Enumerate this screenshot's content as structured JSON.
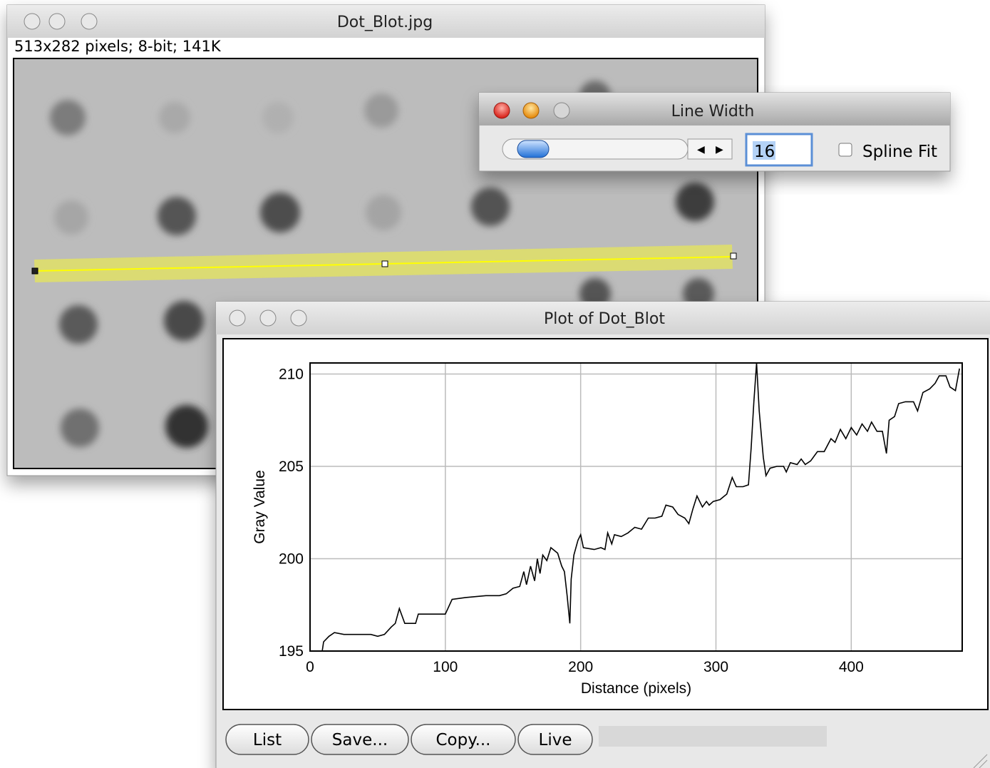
{
  "windows": {
    "image": {
      "title": "Dot_Blot.jpg",
      "info": "513x282 pixels; 8-bit; 141K"
    },
    "line_width": {
      "title": "Line Width",
      "value": 16,
      "checkbox": "Spline Fit"
    },
    "plot": {
      "title": "Plot of Dot_Blot",
      "buttons": [
        "List",
        "Save...",
        "Copy...",
        "Live"
      ]
    }
  },
  "chart_data": {
    "type": "line",
    "x_label": "Distance (pixels)",
    "y_label": "Gray Value",
    "color": "#000000",
    "grid": true,
    "xlim": [
      0,
      482
    ],
    "ylim": [
      195,
      210.6
    ],
    "xticks": [
      0,
      100,
      200,
      300,
      400
    ],
    "yticks": [
      195,
      200,
      205,
      210
    ],
    "x": [
      9,
      10,
      14,
      18,
      25,
      35,
      45,
      50,
      55,
      60,
      63,
      66,
      70,
      78,
      80,
      90,
      100,
      105,
      115,
      130,
      140,
      145,
      150,
      155,
      158,
      160,
      163,
      166,
      168,
      170,
      172,
      175,
      178,
      183,
      186,
      188,
      190,
      192,
      193,
      195,
      198,
      200,
      202,
      210,
      215,
      218,
      220,
      223,
      225,
      230,
      235,
      240,
      245,
      250,
      255,
      260,
      263,
      268,
      272,
      277,
      280,
      283,
      286,
      290,
      293,
      295,
      298,
      303,
      308,
      312,
      315,
      320,
      324,
      326,
      328,
      330,
      332,
      335,
      337,
      340,
      345,
      350,
      352,
      355,
      360,
      363,
      366,
      370,
      375,
      380,
      385,
      388,
      392,
      396,
      400,
      404,
      408,
      412,
      415,
      419,
      423,
      426,
      428,
      432,
      435,
      440,
      446,
      449,
      453,
      458,
      462,
      465,
      470,
      473,
      477,
      480
    ],
    "values": [
      195,
      195.5,
      195.8,
      196,
      195.9,
      195.9,
      195.9,
      195.8,
      195.9,
      196.3,
      196.5,
      197.3,
      196.5,
      196.5,
      197,
      197,
      197,
      197.8,
      197.9,
      198,
      198,
      198.1,
      198.4,
      198.5,
      199.3,
      198.6,
      199.6,
      198.8,
      200,
      199.2,
      200.2,
      199.9,
      200.6,
      200.3,
      199.6,
      199.3,
      198,
      196.5,
      198.9,
      200.2,
      201,
      201.3,
      200.6,
      200.5,
      200.6,
      200.5,
      201.4,
      200.8,
      201.3,
      201.2,
      201.4,
      201.7,
      201.6,
      202.2,
      202.2,
      202.3,
      202.9,
      202.8,
      202.4,
      202.2,
      201.9,
      202.7,
      203.4,
      202.8,
      203.1,
      202.9,
      203.1,
      203.2,
      203.5,
      204.4,
      203.9,
      203.9,
      204,
      206,
      208.5,
      210.6,
      208,
      205.5,
      204.5,
      204.9,
      205,
      205,
      204.7,
      205.2,
      205.1,
      205.4,
      205.1,
      205.3,
      205.8,
      205.8,
      206.5,
      206.3,
      207,
      206.5,
      207.1,
      206.7,
      207.3,
      206.9,
      207.4,
      206.9,
      206.9,
      205.7,
      207.5,
      207.7,
      208.4,
      208.5,
      208.5,
      208,
      209,
      209.2,
      209.5,
      209.9,
      209.9,
      209.3,
      209.1,
      210.3
    ]
  }
}
